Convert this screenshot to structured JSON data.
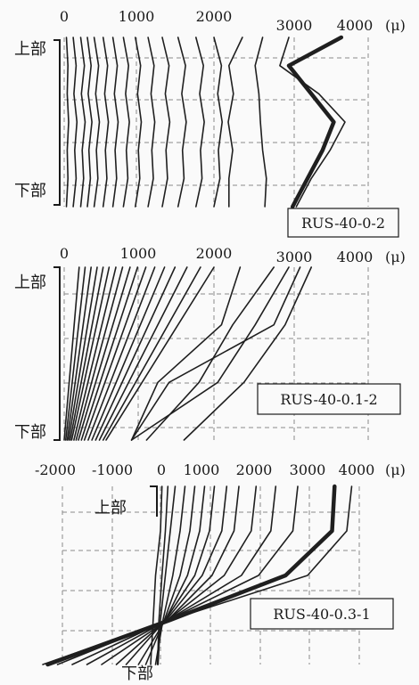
{
  "chart_data": [
    {
      "type": "line",
      "name": "RUS-40-0-2",
      "label": "RUS-40-0-2",
      "x_unit": "(μ)",
      "x_ticks": [
        "0",
        "1000",
        "2000",
        "3000",
        "4000"
      ],
      "xlim": [
        0,
        4600
      ],
      "y_top_label": "上部",
      "y_bottom_label": "下部",
      "grid": true,
      "series": [
        {
          "x": [
            30,
            50,
            40,
            60,
            40,
            50,
            30
          ],
          "bold": false
        },
        {
          "x": [
            120,
            160,
            130,
            170,
            140,
            160,
            120
          ],
          "bold": false
        },
        {
          "x": [
            220,
            270,
            230,
            280,
            240,
            260,
            220
          ],
          "bold": false
        },
        {
          "x": [
            310,
            360,
            320,
            370,
            330,
            350,
            310
          ],
          "bold": false
        },
        {
          "x": [
            400,
            460,
            420,
            470,
            430,
            450,
            400
          ],
          "bold": false
        },
        {
          "x": [
            520,
            580,
            540,
            590,
            550,
            570,
            520
          ],
          "bold": false
        },
        {
          "x": [
            650,
            710,
            670,
            720,
            680,
            700,
            650
          ],
          "bold": false
        },
        {
          "x": [
            790,
            860,
            820,
            870,
            830,
            850,
            790
          ],
          "bold": false
        },
        {
          "x": [
            950,
            1020,
            980,
            1030,
            990,
            1010,
            950
          ],
          "bold": false
        },
        {
          "x": [
            1120,
            1200,
            1160,
            1210,
            1170,
            1190,
            1120
          ],
          "bold": false
        },
        {
          "x": [
            1310,
            1400,
            1350,
            1410,
            1360,
            1380,
            1310
          ],
          "bold": false
        },
        {
          "x": [
            1520,
            1620,
            1570,
            1630,
            1580,
            1600,
            1520
          ],
          "bold": false
        },
        {
          "x": [
            1760,
            1860,
            1810,
            1870,
            1820,
            1840,
            1760
          ],
          "bold": false
        },
        {
          "x": [
            2000,
            2100,
            2050,
            2110,
            2060,
            2080,
            2000
          ],
          "bold": false
        },
        {
          "x": [
            2380,
            2200,
            2260,
            2190,
            2250,
            2200,
            2200
          ],
          "bold": false
        },
        {
          "x": [
            2650,
            2550,
            2600,
            2620,
            2650,
            2700,
            2680
          ],
          "bold": false
        },
        {
          "x": [
            3000,
            2880,
            3400,
            3750,
            3550,
            3300,
            3100
          ],
          "bold": false
        },
        {
          "x": [
            3700,
            3000,
            3300,
            3600,
            3450,
            3250,
            3050
          ],
          "bold": true
        }
      ]
    },
    {
      "type": "line",
      "name": "RUS-40-0.1-2",
      "label": "RUS-40-0.1-2",
      "x_unit": "(μ)",
      "x_ticks": [
        "0",
        "1000",
        "2000",
        "3000",
        "4000"
      ],
      "xlim": [
        0,
        4600
      ],
      "y_top_label": "上部",
      "y_bottom_label": "下部",
      "grid": true,
      "series": [
        {
          "x": [
            200,
            0
          ],
          "bold": false
        },
        {
          "x": [
            280,
            20
          ],
          "bold": false
        },
        {
          "x": [
            360,
            40
          ],
          "bold": false
        },
        {
          "x": [
            440,
            60
          ],
          "bold": false
        },
        {
          "x": [
            520,
            80
          ],
          "bold": false
        },
        {
          "x": [
            600,
            100
          ],
          "bold": false
        },
        {
          "x": [
            690,
            130
          ],
          "bold": false
        },
        {
          "x": [
            780,
            160
          ],
          "bold": false
        },
        {
          "x": [
            880,
            190
          ],
          "bold": false
        },
        {
          "x": [
            980,
            230
          ],
          "bold": false
        },
        {
          "x": [
            1090,
            270
          ],
          "bold": false
        },
        {
          "x": [
            1210,
            320
          ],
          "bold": false
        },
        {
          "x": [
            1340,
            370
          ],
          "bold": false
        },
        {
          "x": [
            1480,
            420
          ],
          "bold": false
        },
        {
          "x": [
            1640,
            470
          ],
          "bold": false
        },
        {
          "x": [
            1820,
            520
          ],
          "bold": false
        },
        {
          "x": [
            2000,
            560
          ],
          "bold": false
        },
        {
          "x": [
            2350,
            2100,
            1250,
            900
          ],
          "bold": false
        },
        {
          "x": [
            2800,
            2250,
            1800,
            1100
          ],
          "bold": false
        },
        {
          "x": [
            3000,
            2550,
            2050,
            900
          ],
          "bold": false
        },
        {
          "x": [
            3300,
            2950,
            2400,
            1600
          ],
          "bold": false
        },
        {
          "x": [
            3150,
            2800,
            1400,
            900
          ],
          "bold": false
        }
      ]
    },
    {
      "type": "line",
      "name": "RUS-40-0.3-1",
      "label": "RUS-40-0.3-1",
      "x_unit": "(μ)",
      "x_ticks": [
        "-2000",
        "-1000",
        "0",
        "1000",
        "2000",
        "3000",
        "4000"
      ],
      "xlim": [
        -2600,
        4600
      ],
      "y_top_label": "上部",
      "y_bottom_label": "下部",
      "grid": true,
      "series": [
        {
          "x": [
            30,
            0,
            -100,
            -150,
            -200
          ],
          "bold": false
        },
        {
          "x": [
            150,
            100,
            30,
            -30,
            -60
          ],
          "bold": false
        },
        {
          "x": [
            300,
            200,
            100,
            0,
            -50
          ],
          "bold": false
        },
        {
          "x": [
            500,
            400,
            250,
            50,
            -100
          ],
          "bold": false
        },
        {
          "x": [
            700,
            600,
            400,
            80,
            -300
          ],
          "bold": false
        },
        {
          "x": [
            900,
            800,
            550,
            100,
            -450
          ],
          "bold": false
        },
        {
          "x": [
            1100,
            1000,
            700,
            100,
            -700
          ],
          "bold": false
        },
        {
          "x": [
            1350,
            1250,
            850,
            120,
            -900
          ],
          "bold": false
        },
        {
          "x": [
            1600,
            1500,
            1050,
            150,
            -1200
          ],
          "bold": false
        },
        {
          "x": [
            1950,
            1850,
            1300,
            150,
            -1500
          ],
          "bold": false
        },
        {
          "x": [
            2350,
            2250,
            1650,
            150,
            -1800
          ],
          "bold": false
        },
        {
          "x": [
            2800,
            2700,
            2000,
            150,
            -2100
          ],
          "bold": false
        },
        {
          "x": [
            3550,
            3500,
            2550,
            200,
            -2300
          ],
          "bold": true
        },
        {
          "x": [
            3900,
            3800,
            3000,
            200,
            -2400
          ],
          "bold": false
        }
      ]
    }
  ]
}
